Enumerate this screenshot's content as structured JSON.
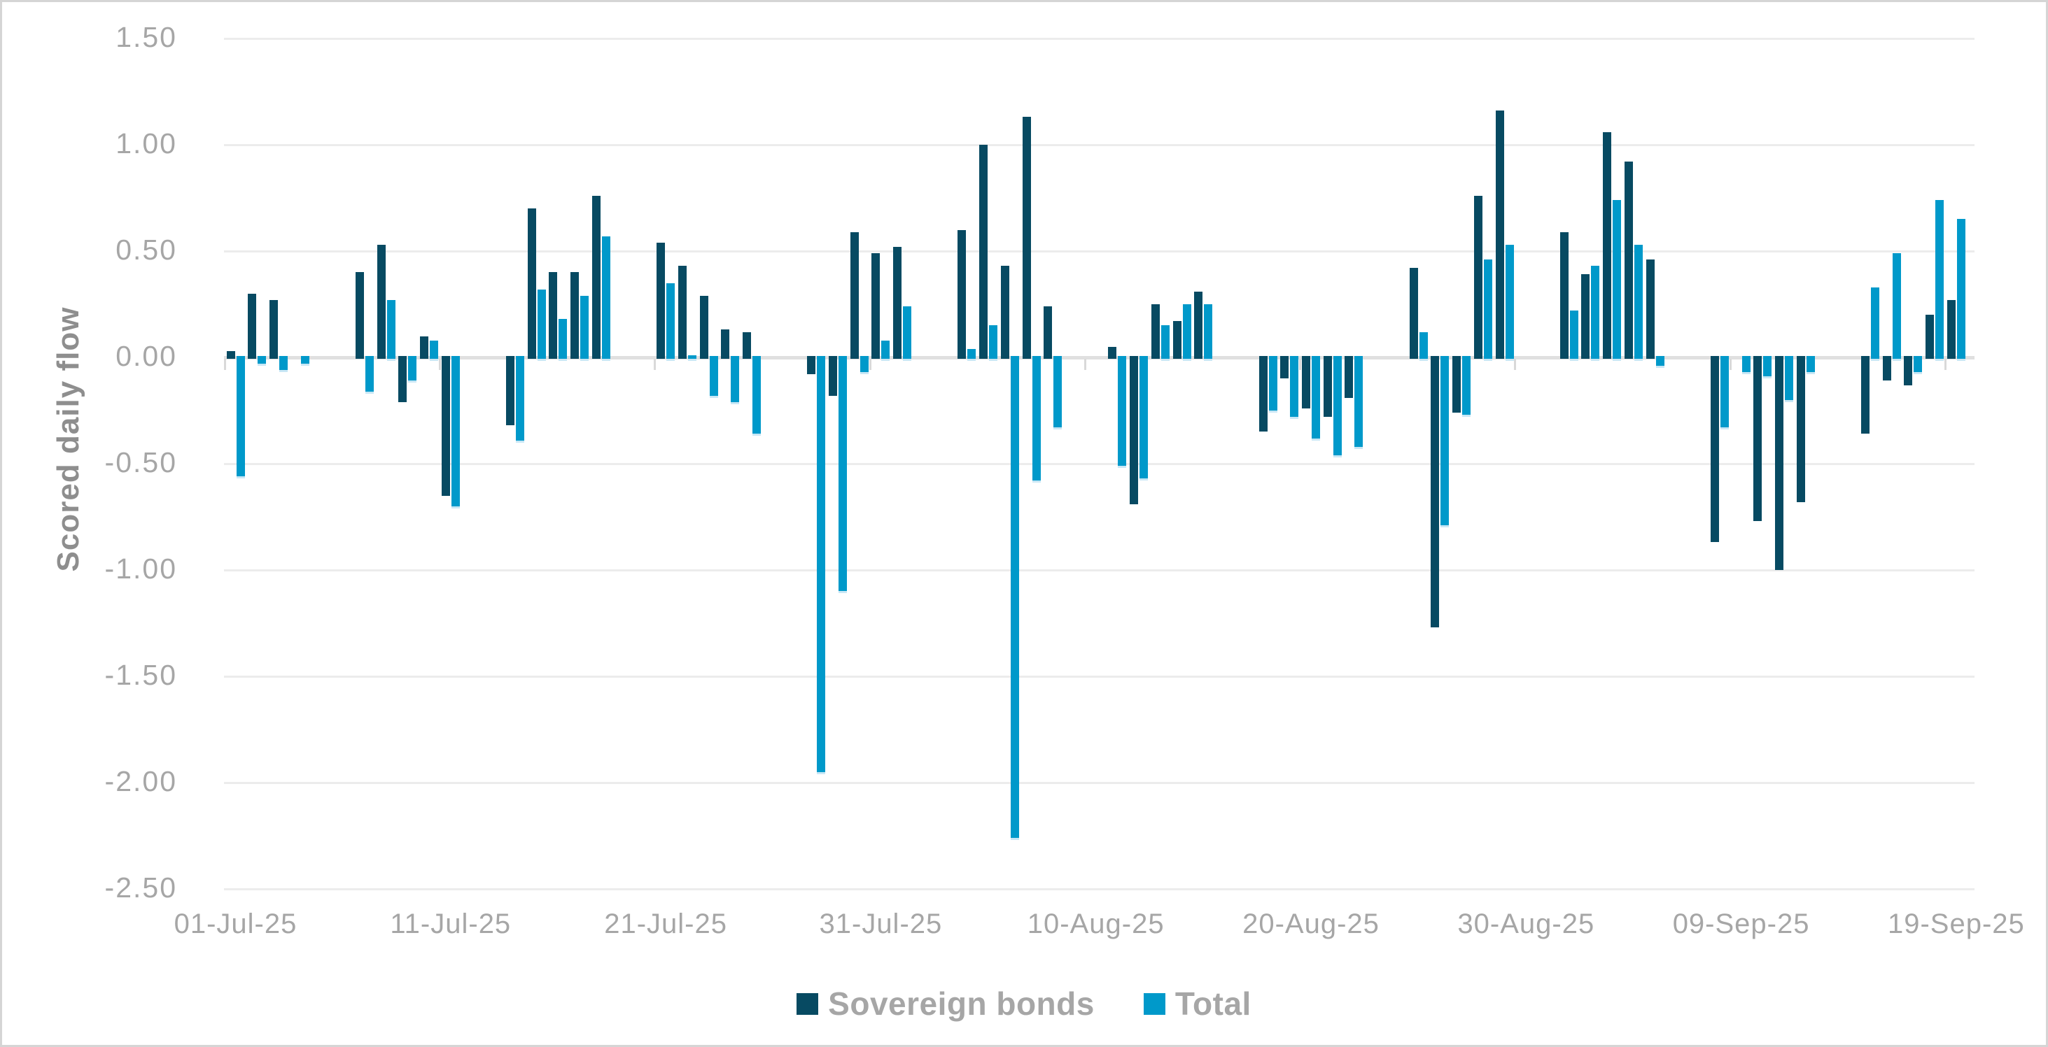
{
  "figure": {
    "background": "#ffffff",
    "border_color": "#d5d5d5",
    "tick_text_color": "#a6a6a6",
    "axis_title_color": "#8e8e8e",
    "gridline_color": "#ececec",
    "zero_line_color": "#e0e0e0"
  },
  "chart_data": {
    "type": "bar",
    "title": "",
    "xlabel": "",
    "ylabel": "Scored daily flow",
    "ylim": [
      -2.5,
      1.5
    ],
    "ytick_step": 0.5,
    "y_tick_labels": [
      "1.50",
      "1.00",
      "0.50",
      "0.00",
      "-0.50",
      "-1.00",
      "-1.50",
      "-2.00",
      "-2.50"
    ],
    "grid": "horizontal",
    "legend_position": "bottom-center",
    "x_ticks": [
      {
        "label": "01-Jul-25",
        "day": 0
      },
      {
        "label": "11-Jul-25",
        "day": 10
      },
      {
        "label": "21-Jul-25",
        "day": 20
      },
      {
        "label": "31-Jul-25",
        "day": 30
      },
      {
        "label": "10-Aug-25",
        "day": 40
      },
      {
        "label": "20-Aug-25",
        "day": 50
      },
      {
        "label": "30-Aug-25",
        "day": 60
      },
      {
        "label": "09-Sep-25",
        "day": 70
      },
      {
        "label": "19-Sep-25",
        "day": 80
      }
    ],
    "series": [
      {
        "name": "Sovereign bonds",
        "color": "#074a62",
        "key": "sovereign_bonds"
      },
      {
        "name": "Total",
        "color": "#0099ca",
        "key": "total"
      }
    ],
    "points": [
      {
        "date": "01-Jul-25",
        "day": 0,
        "sovereign_bonds": 0.03,
        "total": -0.56
      },
      {
        "date": "02-Jul-25",
        "day": 1,
        "sovereign_bonds": 0.3,
        "total": -0.03
      },
      {
        "date": "03-Jul-25",
        "day": 2,
        "sovereign_bonds": 0.27,
        "total": -0.06
      },
      {
        "date": "04-Jul-25",
        "day": 3,
        "sovereign_bonds": 0.0,
        "total": -0.03
      },
      {
        "date": "07-Jul-25",
        "day": 6,
        "sovereign_bonds": 0.4,
        "total": -0.16
      },
      {
        "date": "08-Jul-25",
        "day": 7,
        "sovereign_bonds": 0.53,
        "total": 0.27
      },
      {
        "date": "09-Jul-25",
        "day": 8,
        "sovereign_bonds": -0.21,
        "total": -0.11
      },
      {
        "date": "10-Jul-25",
        "day": 9,
        "sovereign_bonds": 0.1,
        "total": 0.08
      },
      {
        "date": "11-Jul-25",
        "day": 10,
        "sovereign_bonds": -0.65,
        "total": -0.7
      },
      {
        "date": "14-Jul-25",
        "day": 13,
        "sovereign_bonds": -0.32,
        "total": -0.39
      },
      {
        "date": "15-Jul-25",
        "day": 14,
        "sovereign_bonds": 0.7,
        "total": 0.32
      },
      {
        "date": "16-Jul-25",
        "day": 15,
        "sovereign_bonds": 0.4,
        "total": 0.18
      },
      {
        "date": "17-Jul-25",
        "day": 16,
        "sovereign_bonds": 0.4,
        "total": 0.29
      },
      {
        "date": "18-Jul-25",
        "day": 17,
        "sovereign_bonds": 0.76,
        "total": 0.57
      },
      {
        "date": "21-Jul-25",
        "day": 20,
        "sovereign_bonds": 0.54,
        "total": 0.35
      },
      {
        "date": "22-Jul-25",
        "day": 21,
        "sovereign_bonds": 0.43,
        "total": 0.01
      },
      {
        "date": "23-Jul-25",
        "day": 22,
        "sovereign_bonds": 0.29,
        "total": -0.18
      },
      {
        "date": "24-Jul-25",
        "day": 23,
        "sovereign_bonds": 0.13,
        "total": -0.21
      },
      {
        "date": "25-Jul-25",
        "day": 24,
        "sovereign_bonds": 0.12,
        "total": -0.36
      },
      {
        "date": "28-Jul-25",
        "day": 27,
        "sovereign_bonds": -0.08,
        "total": -1.95
      },
      {
        "date": "29-Jul-25",
        "day": 28,
        "sovereign_bonds": -0.18,
        "total": -1.1
      },
      {
        "date": "30-Jul-25",
        "day": 29,
        "sovereign_bonds": 0.59,
        "total": -0.07
      },
      {
        "date": "31-Jul-25",
        "day": 30,
        "sovereign_bonds": 0.49,
        "total": 0.08
      },
      {
        "date": "01-Aug-25",
        "day": 31,
        "sovereign_bonds": 0.52,
        "total": 0.24
      },
      {
        "date": "04-Aug-25",
        "day": 34,
        "sovereign_bonds": 0.6,
        "total": 0.04
      },
      {
        "date": "05-Aug-25",
        "day": 35,
        "sovereign_bonds": 1.0,
        "total": 0.15
      },
      {
        "date": "06-Aug-25",
        "day": 36,
        "sovereign_bonds": 0.43,
        "total": -2.26
      },
      {
        "date": "07-Aug-25",
        "day": 37,
        "sovereign_bonds": 1.13,
        "total": -0.58
      },
      {
        "date": "08-Aug-25",
        "day": 38,
        "sovereign_bonds": 0.24,
        "total": -0.33
      },
      {
        "date": "11-Aug-25",
        "day": 41,
        "sovereign_bonds": 0.05,
        "total": -0.51
      },
      {
        "date": "12-Aug-25",
        "day": 42,
        "sovereign_bonds": -0.69,
        "total": -0.57
      },
      {
        "date": "13-Aug-25",
        "day": 43,
        "sovereign_bonds": 0.25,
        "total": 0.15
      },
      {
        "date": "14-Aug-25",
        "day": 44,
        "sovereign_bonds": 0.17,
        "total": 0.25
      },
      {
        "date": "15-Aug-25",
        "day": 45,
        "sovereign_bonds": 0.31,
        "total": 0.25
      },
      {
        "date": "18-Aug-25",
        "day": 48,
        "sovereign_bonds": -0.35,
        "total": -0.25
      },
      {
        "date": "19-Aug-25",
        "day": 49,
        "sovereign_bonds": -0.1,
        "total": -0.28
      },
      {
        "date": "20-Aug-25",
        "day": 50,
        "sovereign_bonds": -0.24,
        "total": -0.38
      },
      {
        "date": "21-Aug-25",
        "day": 51,
        "sovereign_bonds": -0.28,
        "total": -0.46
      },
      {
        "date": "22-Aug-25",
        "day": 52,
        "sovereign_bonds": -0.19,
        "total": -0.42
      },
      {
        "date": "25-Aug-25",
        "day": 55,
        "sovereign_bonds": 0.42,
        "total": 0.12
      },
      {
        "date": "26-Aug-25",
        "day": 56,
        "sovereign_bonds": -1.27,
        "total": -0.79
      },
      {
        "date": "27-Aug-25",
        "day": 57,
        "sovereign_bonds": -0.26,
        "total": -0.27
      },
      {
        "date": "28-Aug-25",
        "day": 58,
        "sovereign_bonds": 0.76,
        "total": 0.46
      },
      {
        "date": "29-Aug-25",
        "day": 59,
        "sovereign_bonds": 1.16,
        "total": 0.53
      },
      {
        "date": "01-Sep-25",
        "day": 62,
        "sovereign_bonds": 0.59,
        "total": 0.22
      },
      {
        "date": "02-Sep-25",
        "day": 63,
        "sovereign_bonds": 0.39,
        "total": 0.43
      },
      {
        "date": "03-Sep-25",
        "day": 64,
        "sovereign_bonds": 1.06,
        "total": 0.74
      },
      {
        "date": "04-Sep-25",
        "day": 65,
        "sovereign_bonds": 0.92,
        "total": 0.53
      },
      {
        "date": "05-Sep-25",
        "day": 66,
        "sovereign_bonds": 0.46,
        "total": -0.04
      },
      {
        "date": "08-Sep-25",
        "day": 69,
        "sovereign_bonds": -0.87,
        "total": -0.33
      },
      {
        "date": "09-Sep-25",
        "day": 70,
        "sovereign_bonds": 0.0,
        "total": -0.07
      },
      {
        "date": "10-Sep-25",
        "day": 71,
        "sovereign_bonds": -0.77,
        "total": -0.09
      },
      {
        "date": "11-Sep-25",
        "day": 72,
        "sovereign_bonds": -1.0,
        "total": -0.2
      },
      {
        "date": "12-Sep-25",
        "day": 73,
        "sovereign_bonds": -0.68,
        "total": -0.07
      },
      {
        "date": "15-Sep-25",
        "day": 76,
        "sovereign_bonds": -0.36,
        "total": 0.33
      },
      {
        "date": "16-Sep-25",
        "day": 77,
        "sovereign_bonds": -0.11,
        "total": 0.49
      },
      {
        "date": "17-Sep-25",
        "day": 78,
        "sovereign_bonds": -0.13,
        "total": -0.07
      },
      {
        "date": "18-Sep-25",
        "day": 79,
        "sovereign_bonds": 0.2,
        "total": 0.74
      },
      {
        "date": "19-Sep-25",
        "day": 80,
        "sovereign_bonds": 0.27,
        "total": 0.65
      }
    ]
  }
}
